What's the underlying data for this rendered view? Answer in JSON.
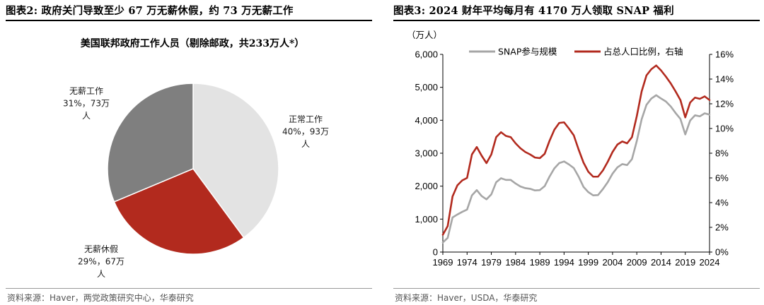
{
  "left": {
    "fig_title": "图表2:  政府关门导致至少 67 万无薪休假，约 73 万无薪工作",
    "source": "资料来源：Haver，两党政策研究中心，华泰研究"
  },
  "right": {
    "fig_title": "图表3:  2024 财年平均每月有 4170 万人领取 SNAP 福利",
    "source": "资料来源：Haver，USDA，华泰研究"
  },
  "colors": {
    "red": "#B22A1E",
    "gray": "#A6A6A6",
    "dark_gray": "#7F7F7F",
    "light_gray": "#E3E3E3"
  },
  "chart_data": [
    {
      "type": "pie",
      "title": "美国联邦政府工作人员（剔除邮政，共233万人*）",
      "slices": [
        {
          "label_lines": [
            "正常工作",
            "40%，93万",
            "人"
          ],
          "value": 93,
          "percent": 40,
          "color": "#E3E3E3"
        },
        {
          "label_lines": [
            "无薪休假",
            "29%，67万",
            "人"
          ],
          "value": 67,
          "percent": 29,
          "color": "#B22A1E"
        },
        {
          "label_lines": [
            "无薪工作",
            "31%，73万",
            "人"
          ],
          "value": 73,
          "percent": 31,
          "color": "#7F7F7F"
        }
      ]
    },
    {
      "type": "line",
      "y_unit": "（万人）",
      "ylim": [
        0,
        6000
      ],
      "y_ticks": [
        "0",
        "1,000",
        "2,000",
        "3,000",
        "4,000",
        "5,000",
        "6,000"
      ],
      "y2lim": [
        0,
        16
      ],
      "y2_ticks": [
        "0%",
        "2%",
        "4%",
        "6%",
        "8%",
        "10%",
        "12%",
        "14%",
        "16%"
      ],
      "x_ticks": [
        "1969",
        "1974",
        "1979",
        "1984",
        "1989",
        "1994",
        "1999",
        "2004",
        "2009",
        "2014",
        "2019",
        "2024"
      ],
      "x": [
        1969,
        1970,
        1971,
        1972,
        1973,
        1974,
        1975,
        1976,
        1977,
        1978,
        1979,
        1980,
        1981,
        1982,
        1983,
        1984,
        1985,
        1986,
        1987,
        1988,
        1989,
        1990,
        1991,
        1992,
        1993,
        1994,
        1995,
        1996,
        1997,
        1998,
        1999,
        2000,
        2001,
        2002,
        2003,
        2004,
        2005,
        2006,
        2007,
        2008,
        2009,
        2010,
        2011,
        2012,
        2013,
        2014,
        2015,
        2016,
        2017,
        2018,
        2019,
        2020,
        2021,
        2022,
        2023,
        2024
      ],
      "series": [
        {
          "name": "SNAP参与规模",
          "axis": "left",
          "color": "#A6A6A6",
          "values": [
            290,
            430,
            1050,
            1140,
            1220,
            1290,
            1720,
            1880,
            1700,
            1600,
            1750,
            2120,
            2240,
            2190,
            2190,
            2080,
            1990,
            1940,
            1920,
            1870,
            1880,
            2000,
            2290,
            2540,
            2700,
            2750,
            2660,
            2550,
            2290,
            1980,
            1820,
            1720,
            1730,
            1910,
            2120,
            2380,
            2570,
            2670,
            2640,
            2820,
            3370,
            4030,
            4470,
            4660,
            4760,
            4660,
            4570,
            4420,
            4220,
            4040,
            3570,
            3990,
            4150,
            4120,
            4210,
            4170
          ]
        },
        {
          "name": "占总人口比例，右轴",
          "axis": "right",
          "color": "#B22A1E",
          "values": [
            1.4,
            2.1,
            4.5,
            5.4,
            5.8,
            6.0,
            7.9,
            8.5,
            7.8,
            7.2,
            7.9,
            9.3,
            9.7,
            9.4,
            9.3,
            8.8,
            8.4,
            8.1,
            7.9,
            7.65,
            7.6,
            7.95,
            9.0,
            9.9,
            10.45,
            10.5,
            10.0,
            9.45,
            8.3,
            7.25,
            6.5,
            6.1,
            6.1,
            6.6,
            7.3,
            8.1,
            8.7,
            8.95,
            8.8,
            9.3,
            11.0,
            13.0,
            14.3,
            14.8,
            15.1,
            14.7,
            14.2,
            13.65,
            13.0,
            12.3,
            10.9,
            12.1,
            12.5,
            12.4,
            12.6,
            12.3
          ]
        }
      ]
    }
  ]
}
